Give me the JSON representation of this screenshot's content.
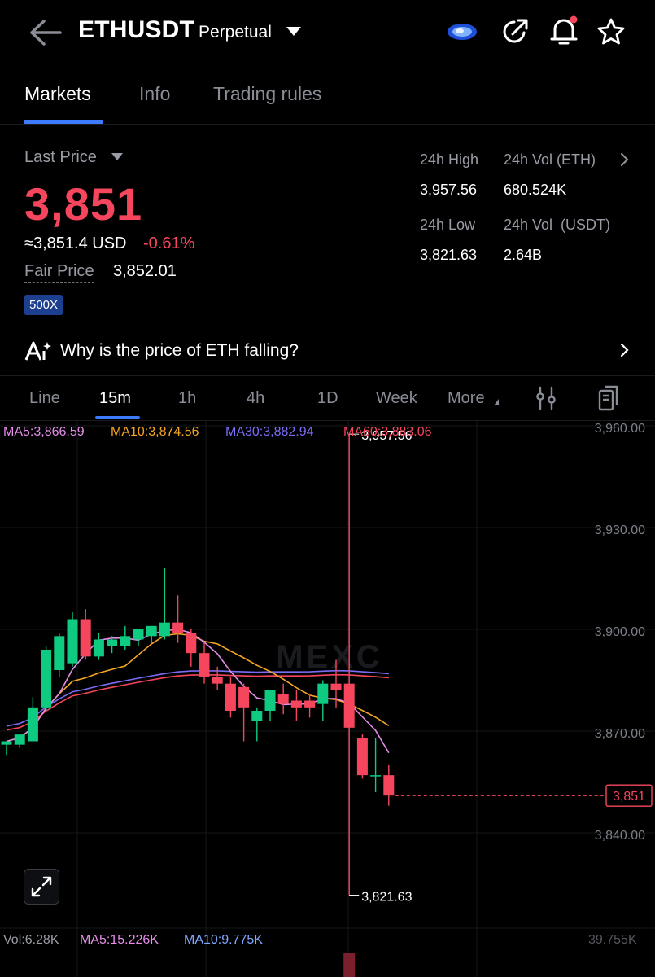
{
  "header": {
    "symbol": "ETHUSDT",
    "contract_type": "Perpetual",
    "icons": [
      "back-arrow-icon",
      "exchange-logo-icon",
      "share-icon",
      "bell-icon",
      "star-icon"
    ]
  },
  "tabs": [
    {
      "label": "Markets",
      "active": true
    },
    {
      "label": "Info",
      "active": false
    },
    {
      "label": "Trading rules",
      "active": false
    }
  ],
  "price": {
    "label": "Last Price",
    "last": "3,851",
    "approx": "≈3,851.4 USD",
    "change": "-0.61%",
    "fair_label": "Fair Price",
    "fair_value": "3,852.01",
    "leverage": "500X"
  },
  "stats": {
    "high_label": "24h High",
    "high_value": "3,957.56",
    "vol_eth_label": "24h Vol (ETH)",
    "vol_eth_value": "680.524K",
    "low_label": "24h Low",
    "low_value": "3,821.63",
    "vol_usdt_label": "24h Vol  (USDT)",
    "vol_usdt_value": "2.64B"
  },
  "news": {
    "text": "Why is the price of ETH falling?"
  },
  "intervals": [
    {
      "label": "Line"
    },
    {
      "label": "15m",
      "active": true
    },
    {
      "label": "1h"
    },
    {
      "label": "4h"
    },
    {
      "label": "1D"
    },
    {
      "label": "Week"
    },
    {
      "label": "More"
    }
  ],
  "colors": {
    "up": "#0ecb81",
    "down": "#f6465d",
    "accent": "#3d7cff",
    "ma5": "#e58de9",
    "ma10": "#f5a623",
    "ma30": "#7b6cf6",
    "ma60": "#f6465d"
  },
  "chart_data": {
    "type": "candlestick",
    "watermark": "MEXC",
    "ma_legend": [
      {
        "label": "MA5:3,866.59"
      },
      {
        "label": "MA10:3,874.56"
      },
      {
        "label": "MA30:3,882.94"
      },
      {
        "label": "MA60:3,883.06"
      }
    ],
    "y_axis": {
      "range": [
        3810,
        3960
      ],
      "ticks": [
        3960,
        3930,
        3900,
        3870,
        3840
      ],
      "tick_labels": [
        "3,960.00",
        "3,930.00",
        "3,900.00",
        "3,870.00",
        "3,840.00"
      ]
    },
    "current_price": {
      "value": 3851,
      "label": "3,851"
    },
    "high_marker": {
      "value": 3957.56,
      "label": "3,957.56"
    },
    "low_marker": {
      "value": 3821.63,
      "label": "3,821.63"
    },
    "candles": [
      {
        "o": 3866,
        "h": 3867,
        "l": 3863,
        "c": 3867
      },
      {
        "o": 3866,
        "h": 3869,
        "l": 3865,
        "c": 3869
      },
      {
        "o": 3867,
        "h": 3880,
        "l": 3867,
        "c": 3877
      },
      {
        "o": 3877,
        "h": 3895,
        "l": 3876,
        "c": 3894
      },
      {
        "o": 3888,
        "h": 3899,
        "l": 3886,
        "c": 3898
      },
      {
        "o": 3890,
        "h": 3905,
        "l": 3889,
        "c": 3903
      },
      {
        "o": 3903,
        "h": 3906,
        "l": 3891,
        "c": 3892
      },
      {
        "o": 3892,
        "h": 3899,
        "l": 3891,
        "c": 3897
      },
      {
        "o": 3895,
        "h": 3898,
        "l": 3893,
        "c": 3897
      },
      {
        "o": 3895,
        "h": 3901,
        "l": 3894,
        "c": 3898
      },
      {
        "o": 3897,
        "h": 3900,
        "l": 3895,
        "c": 3900
      },
      {
        "o": 3898,
        "h": 3901,
        "l": 3896,
        "c": 3901
      },
      {
        "o": 3898,
        "h": 3918,
        "l": 3897,
        "c": 3902
      },
      {
        "o": 3902,
        "h": 3910,
        "l": 3896,
        "c": 3899
      },
      {
        "o": 3899,
        "h": 3900,
        "l": 3889,
        "c": 3893
      },
      {
        "o": 3893,
        "h": 3896,
        "l": 3884,
        "c": 3886
      },
      {
        "o": 3886,
        "h": 3889,
        "l": 3882,
        "c": 3884
      },
      {
        "o": 3884,
        "h": 3886,
        "l": 3874,
        "c": 3876
      },
      {
        "o": 3883,
        "h": 3884,
        "l": 3867,
        "c": 3877
      },
      {
        "o": 3873,
        "h": 3877,
        "l": 3867,
        "c": 3876
      },
      {
        "o": 3876,
        "h": 3882,
        "l": 3873,
        "c": 3882
      },
      {
        "o": 3881,
        "h": 3884,
        "l": 3875,
        "c": 3878
      },
      {
        "o": 3879,
        "h": 3882,
        "l": 3873,
        "c": 3877
      },
      {
        "o": 3879,
        "h": 3881,
        "l": 3874,
        "c": 3877
      },
      {
        "o": 3878,
        "h": 3885,
        "l": 3873,
        "c": 3884
      },
      {
        "o": 3884,
        "h": 3891,
        "l": 3877,
        "c": 3882
      },
      {
        "o": 3884,
        "h": 3957.56,
        "l": 3821.63,
        "c": 3871
      },
      {
        "o": 3868,
        "h": 3869,
        "l": 3856,
        "c": 3857
      },
      {
        "o": 3857,
        "h": 3868,
        "l": 3852,
        "c": 3857
      },
      {
        "o": 3857,
        "h": 3860,
        "l": 3848,
        "c": 3851
      }
    ]
  },
  "volume": {
    "vol_label": "Vol:6.28K",
    "ma5_label": "MA5:15.226K",
    "ma10_label": "MA10:9.775K",
    "axis_label": "39.755K"
  }
}
